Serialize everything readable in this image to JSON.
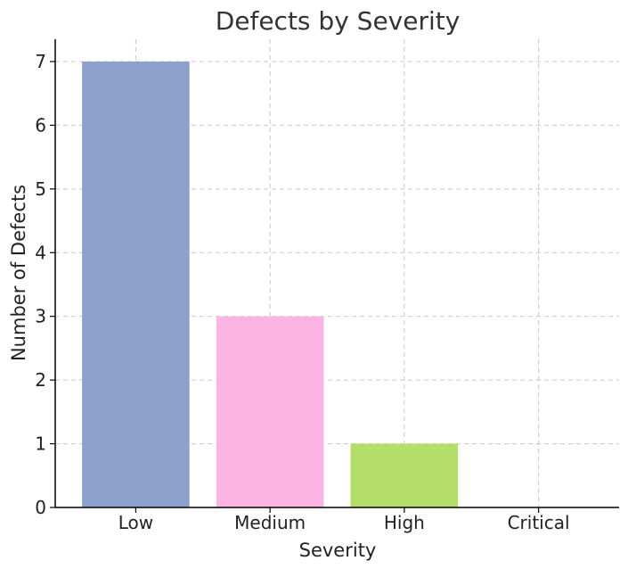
{
  "chart_data": {
    "type": "bar",
    "title": "Defects by Severity",
    "xlabel": "Severity",
    "ylabel": "Number of Defects",
    "categories": [
      "Low",
      "Medium",
      "High",
      "Critical"
    ],
    "values": [
      7,
      3,
      1,
      0
    ],
    "colors": [
      "#8da0cb",
      "#fbb4e4",
      "#b3de69",
      "#d9d9d9"
    ],
    "ylim": [
      0,
      7.35
    ],
    "yticks": [
      0,
      1,
      2,
      3,
      4,
      5,
      6,
      7
    ],
    "grid": true,
    "legend": "none"
  }
}
